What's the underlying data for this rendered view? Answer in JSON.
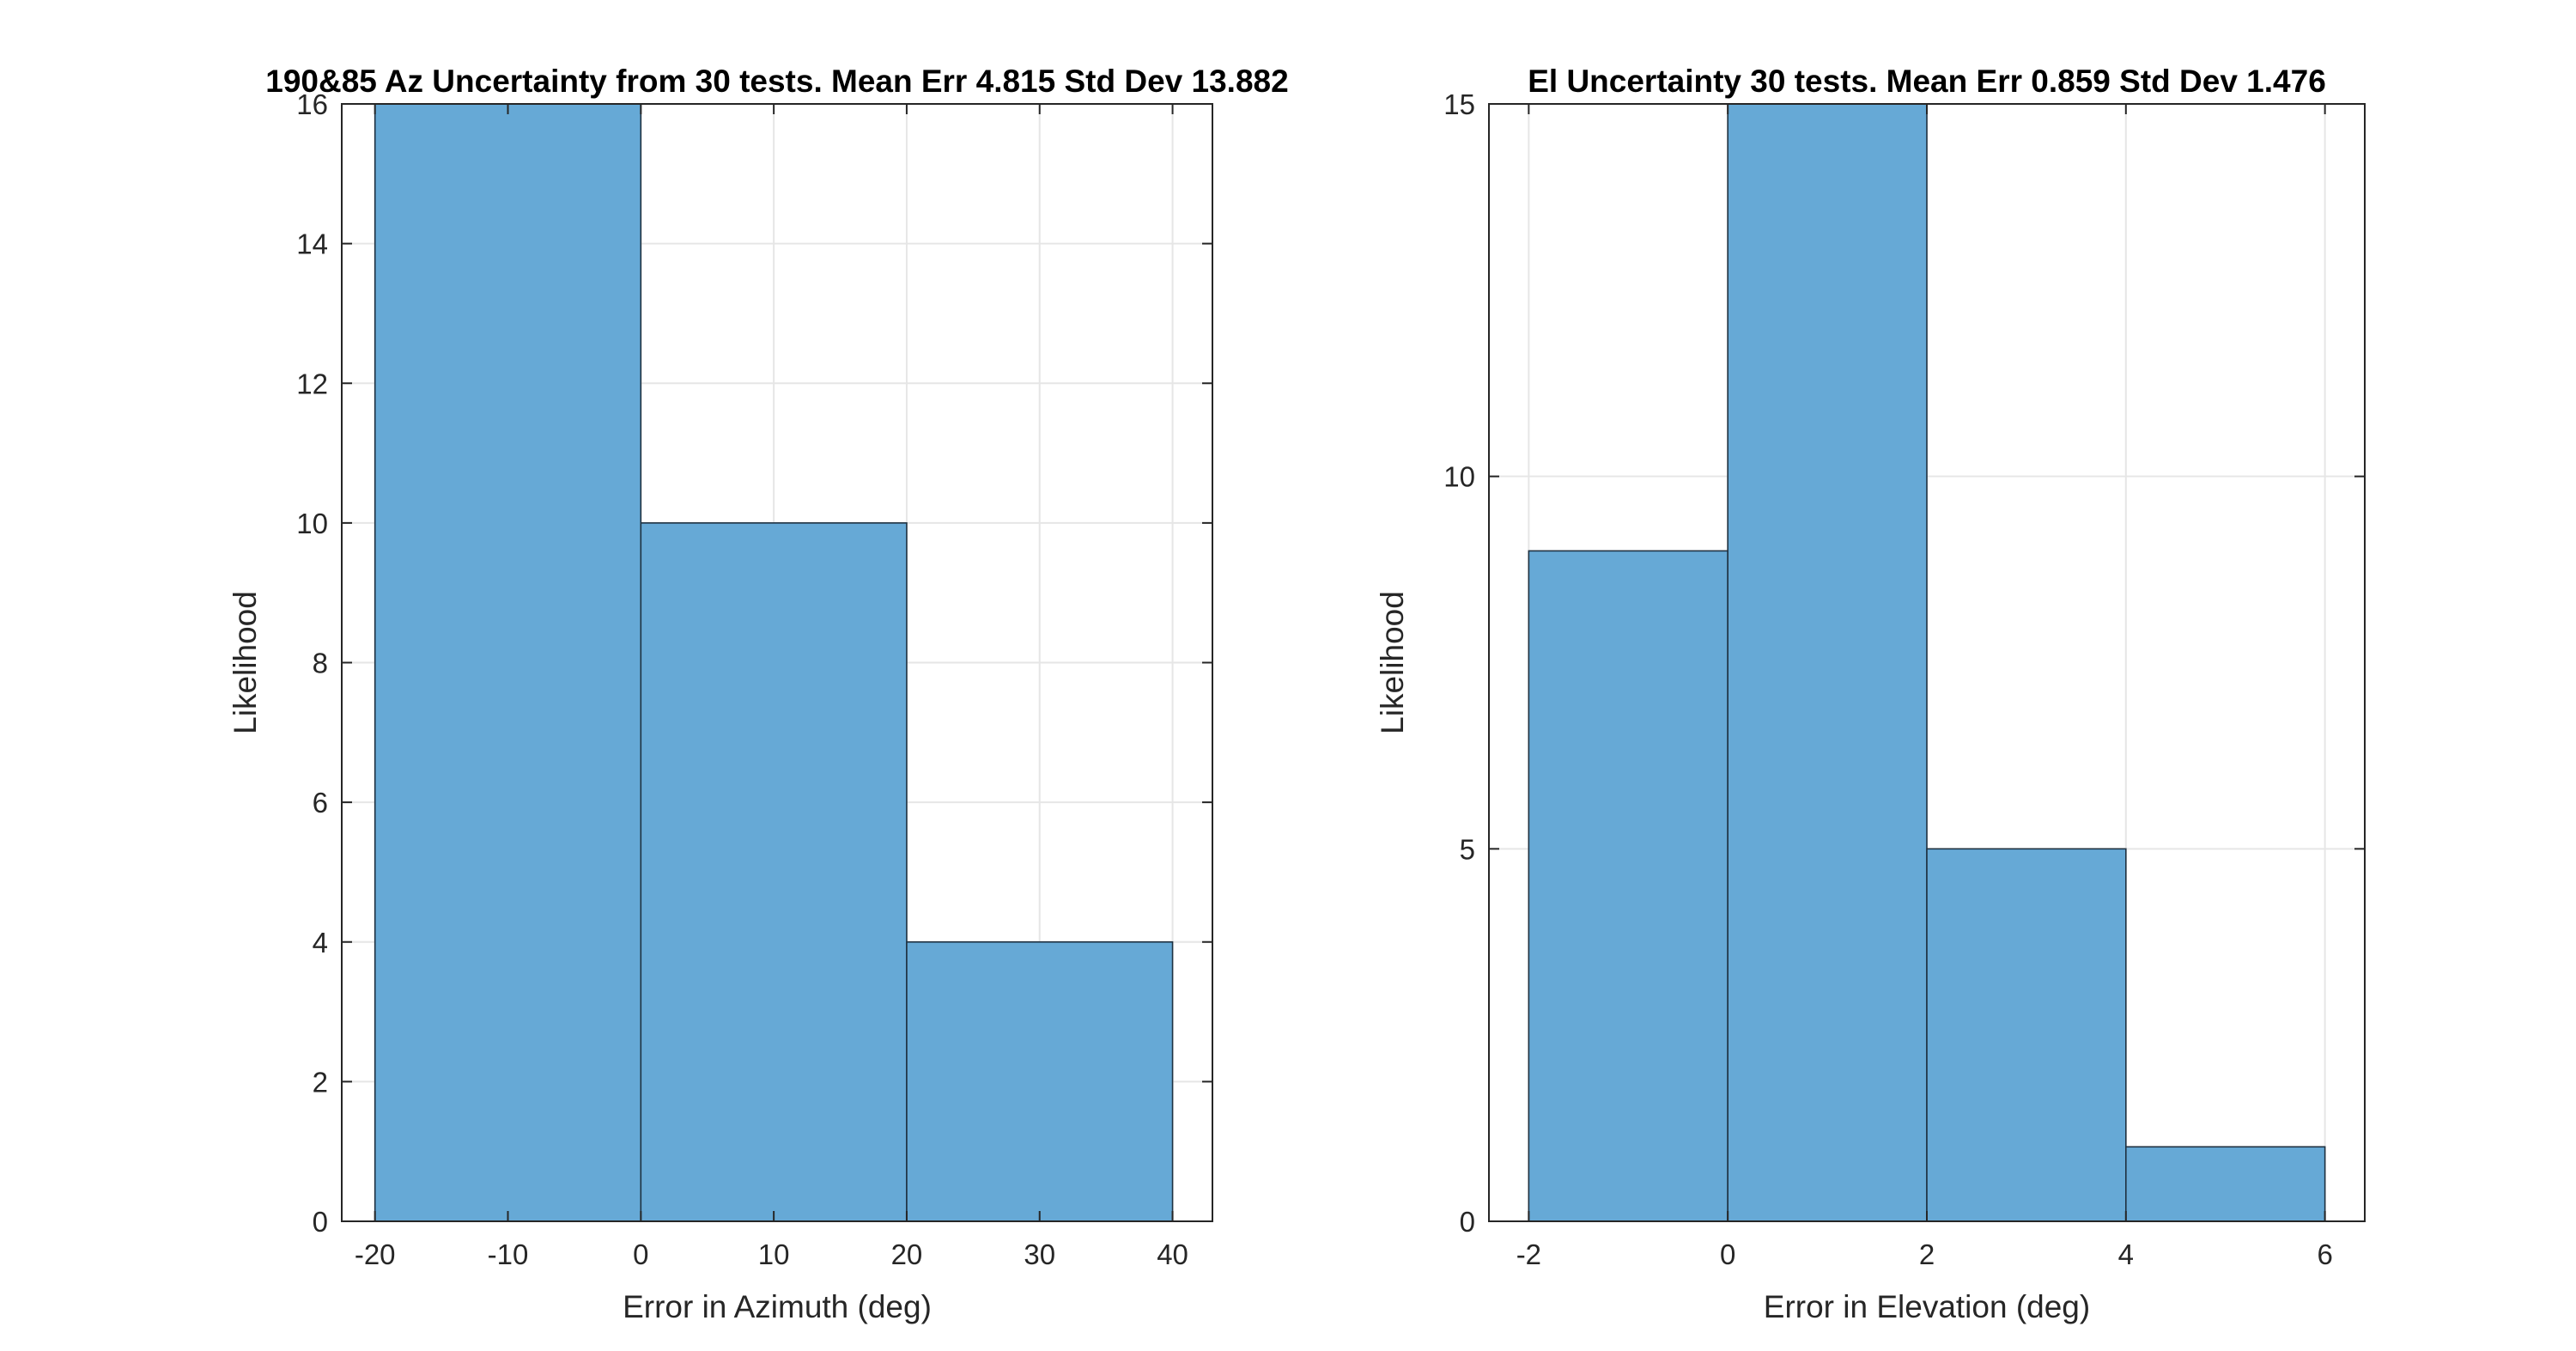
{
  "chart_data": [
    {
      "type": "bar",
      "subtype": "histogram",
      "title": "190&85 Az Uncertainty from 30 tests. Mean Err 4.815 Std Dev 13.882",
      "xlabel": "Error in Azimuth (deg)",
      "ylabel": "Likelihood",
      "bin_edges": [
        -20,
        0,
        20,
        40
      ],
      "values": [
        16,
        10,
        4
      ],
      "xlim": [
        -22.5,
        43
      ],
      "ylim": [
        0,
        16
      ],
      "xticks": [
        -20,
        -10,
        0,
        10,
        20,
        30,
        40
      ],
      "yticks": [
        0,
        2,
        4,
        6,
        8,
        10,
        12,
        14,
        16
      ],
      "xtick_labels": [
        "-20",
        "-10",
        "0",
        "10",
        "20",
        "30",
        "40"
      ],
      "ytick_labels": [
        "0",
        "2",
        "4",
        "6",
        "8",
        "10",
        "12",
        "14",
        "16"
      ],
      "grid": true,
      "colors": {
        "bar_fill": "#66a9d6",
        "bar_edge": "#1f3242"
      }
    },
    {
      "type": "bar",
      "subtype": "histogram",
      "title": "El Uncertainty 30 tests. Mean Err 0.859 Std Dev 1.476",
      "xlabel": "Error in Elevation (deg)",
      "ylabel": "Likelihood",
      "bin_edges": [
        -2,
        0,
        2,
        4,
        6
      ],
      "values": [
        9,
        15,
        5,
        1
      ],
      "xlim": [
        -2.4,
        6.4
      ],
      "ylim": [
        0,
        15
      ],
      "xticks": [
        -2,
        0,
        2,
        4,
        6
      ],
      "yticks": [
        0,
        5,
        10,
        15
      ],
      "xtick_labels": [
        "-2",
        "0",
        "2",
        "4",
        "6"
      ],
      "ytick_labels": [
        "0",
        "5",
        "10",
        "15"
      ],
      "grid": true,
      "colors": {
        "bar_fill": "#66a9d6",
        "bar_edge": "#1f3242"
      }
    }
  ]
}
